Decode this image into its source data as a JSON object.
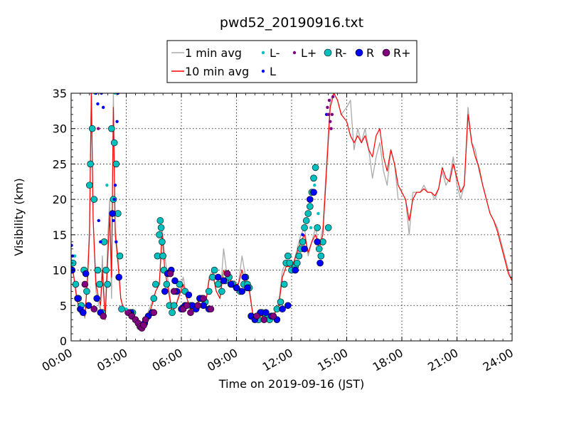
{
  "chart_data": {
    "type": "line",
    "title": "pwd52_20190916.txt",
    "xlabel": "Time on 2019-09-16 (JST)",
    "ylabel": "Visibility (km)",
    "x_unit": "hours (JST)",
    "xlim": [
      0,
      24
    ],
    "ylim": [
      0,
      35
    ],
    "x_ticks": [
      0,
      3,
      6,
      9,
      12,
      15,
      18,
      21,
      24
    ],
    "x_tick_labels": [
      "00:00",
      "03:00",
      "06:00",
      "09:00",
      "12:00",
      "15:00",
      "18:00",
      "21:00",
      "24:00"
    ],
    "y_ticks": [
      0,
      5,
      10,
      15,
      20,
      25,
      30,
      35
    ],
    "y_tick_labels": [
      "0",
      "5",
      "10",
      "15",
      "20",
      "25",
      "30",
      "35"
    ],
    "grid": true,
    "legend_position": "top-center",
    "legend": [
      {
        "label": "1 min avg",
        "kind": "line",
        "color": "#aaaaaa"
      },
      {
        "label": "10 min avg",
        "kind": "line",
        "color": "#ff0000"
      },
      {
        "label": "L-",
        "kind": "dot",
        "color": "#00bfbf"
      },
      {
        "label": "L",
        "kind": "dot",
        "color": "#0000ff"
      },
      {
        "label": "L+",
        "kind": "dot",
        "color": "#800080"
      },
      {
        "label": "R-",
        "kind": "circle",
        "color": "#00bfbf"
      },
      {
        "label": "R",
        "kind": "circle",
        "color": "#0000ff"
      },
      {
        "label": "R+",
        "kind": "circle",
        "color": "#800080"
      }
    ],
    "series": [
      {
        "name": "1 min avg",
        "color": "#aaaaaa",
        "x": [
          0.0,
          0.15,
          0.3,
          0.45,
          0.6,
          0.75,
          0.9,
          1.0,
          1.1,
          1.2,
          1.35,
          1.5,
          1.6,
          1.7,
          1.85,
          2.0,
          2.1,
          2.2,
          2.3,
          2.4,
          2.55,
          2.7,
          2.85,
          3.0,
          3.2,
          3.5,
          3.8,
          4.1,
          4.4,
          4.6,
          4.8,
          4.95,
          5.1,
          5.3,
          5.5,
          5.7,
          5.9,
          6.1,
          6.3,
          6.5,
          6.7,
          6.9,
          7.1,
          7.3,
          7.5,
          7.7,
          7.9,
          8.1,
          8.3,
          8.5,
          8.7,
          8.9,
          9.1,
          9.3,
          9.5,
          9.7,
          9.9,
          10.1,
          10.3,
          10.5,
          10.7,
          10.9,
          11.1,
          11.3,
          11.5,
          11.7,
          11.9,
          12.1,
          12.3,
          12.5,
          12.7,
          12.9,
          13.1,
          13.3,
          13.5,
          13.7,
          13.9,
          14.1,
          14.3,
          14.5,
          14.7,
          15.0,
          15.2,
          15.4,
          15.6,
          15.8,
          16.0,
          16.2,
          16.4,
          16.6,
          16.8,
          17.0,
          17.2,
          17.4,
          17.6,
          17.8,
          18.0,
          18.2,
          18.4,
          18.6,
          18.8,
          19.0,
          19.2,
          19.4,
          19.6,
          19.8,
          20.0,
          20.2,
          20.4,
          20.6,
          20.8,
          21.0,
          21.2,
          21.4,
          21.6,
          21.8,
          22.0,
          22.2,
          22.4,
          22.6,
          22.8,
          23.0,
          23.2,
          23.4,
          23.6,
          23.8,
          24.0
        ],
        "y": [
          12.0,
          9.0,
          6.5,
          4.0,
          4.5,
          3.2,
          10.0,
          16.0,
          35.0,
          17.0,
          7.0,
          5.0,
          4.5,
          12.0,
          3.0,
          15.0,
          20.0,
          6.0,
          35.0,
          16.0,
          12.0,
          6.0,
          4.5,
          4.2,
          4.0,
          3.0,
          1.8,
          3.5,
          5.5,
          7.0,
          8.0,
          16.0,
          12.0,
          8.0,
          4.0,
          5.0,
          7.0,
          9.0,
          6.0,
          4.5,
          4.5,
          5.5,
          6.0,
          4.5,
          9.0,
          10.0,
          7.0,
          6.0,
          13.0,
          9.0,
          8.5,
          8.5,
          8.0,
          12.0,
          9.0,
          7.5,
          3.5,
          3.0,
          4.0,
          3.5,
          3.2,
          3.5,
          4.0,
          5.5,
          10.0,
          11.0,
          10.5,
          11.0,
          13.0,
          15.0,
          16.0,
          12.0,
          14.0,
          16.0,
          13.0,
          16.0,
          25.0,
          34.0,
          35.0,
          34.0,
          32.0,
          33.0,
          34.0,
          27.0,
          30.0,
          28.0,
          30.0,
          27.0,
          23.0,
          26.0,
          28.0,
          24.0,
          22.0,
          27.0,
          25.0,
          20.0,
          20.0,
          20.0,
          15.0,
          21.0,
          21.0,
          21.0,
          22.0,
          21.0,
          21.0,
          20.0,
          21.5,
          24.0,
          22.0,
          23.0,
          26.0,
          22.0,
          20.0,
          22.0,
          33.0,
          28.0,
          27.0,
          24.0,
          22.0,
          20.0,
          18.0,
          17.0,
          16.0,
          14.0,
          12.0,
          10.0,
          8.5
        ],
        "notes": "high-frequency noisy series approximated"
      },
      {
        "name": "10 min avg",
        "color": "#ff0000",
        "x": [
          0.0,
          0.15,
          0.3,
          0.45,
          0.6,
          0.75,
          0.9,
          1.0,
          1.1,
          1.2,
          1.35,
          1.5,
          1.6,
          1.7,
          1.85,
          2.0,
          2.1,
          2.2,
          2.3,
          2.4,
          2.55,
          2.7,
          2.85,
          3.0,
          3.2,
          3.5,
          3.8,
          4.1,
          4.4,
          4.6,
          4.8,
          4.95,
          5.1,
          5.3,
          5.5,
          5.7,
          5.9,
          6.1,
          6.3,
          6.5,
          6.7,
          6.9,
          7.1,
          7.3,
          7.5,
          7.7,
          7.9,
          8.1,
          8.3,
          8.5,
          8.7,
          8.9,
          9.1,
          9.3,
          9.5,
          9.7,
          9.9,
          10.1,
          10.3,
          10.5,
          10.7,
          10.9,
          11.1,
          11.3,
          11.5,
          11.7,
          11.9,
          12.1,
          12.3,
          12.5,
          12.7,
          12.9,
          13.1,
          13.3,
          13.5,
          13.7,
          13.9,
          14.1,
          14.3,
          14.5,
          14.7,
          15.0,
          15.2,
          15.4,
          15.6,
          15.8,
          16.0,
          16.2,
          16.4,
          16.6,
          16.8,
          17.0,
          17.2,
          17.4,
          17.6,
          17.8,
          18.0,
          18.2,
          18.4,
          18.6,
          18.8,
          19.0,
          19.2,
          19.4,
          19.6,
          19.8,
          20.0,
          20.2,
          20.4,
          20.6,
          20.8,
          21.0,
          21.2,
          21.4,
          21.6,
          21.8,
          22.0,
          22.2,
          22.4,
          22.6,
          22.8,
          23.0,
          23.2,
          23.4,
          23.6,
          23.8,
          24.0
        ],
        "y": [
          11.0,
          9.0,
          6.0,
          4.5,
          4.5,
          3.5,
          9.0,
          15.0,
          35.0,
          17.0,
          8.0,
          6.0,
          5.0,
          10.0,
          3.0,
          12.0,
          18.0,
          9.0,
          33.0,
          15.0,
          11.0,
          6.0,
          4.5,
          4.2,
          4.0,
          3.0,
          2.0,
          3.0,
          5.0,
          7.0,
          8.0,
          15.0,
          10.0,
          7.0,
          4.0,
          5.0,
          6.5,
          8.0,
          6.0,
          4.5,
          4.5,
          5.5,
          6.0,
          5.0,
          8.5,
          9.5,
          7.0,
          6.0,
          10.0,
          9.0,
          8.5,
          8.0,
          8.0,
          10.0,
          8.0,
          7.0,
          3.5,
          3.0,
          3.5,
          3.5,
          3.2,
          3.5,
          4.0,
          5.0,
          9.0,
          10.5,
          10.5,
          11.0,
          12.5,
          14.0,
          15.0,
          12.5,
          14.0,
          15.0,
          13.0,
          15.0,
          24.0,
          33.0,
          35.0,
          34.0,
          32.0,
          31.0,
          29.0,
          28.0,
          29.0,
          28.0,
          29.0,
          27.0,
          26.0,
          29.0,
          30.0,
          26.0,
          24.0,
          27.0,
          25.0,
          22.0,
          21.0,
          20.0,
          17.0,
          20.0,
          21.0,
          21.0,
          21.5,
          21.0,
          21.0,
          20.5,
          21.5,
          24.5,
          23.0,
          22.5,
          25.0,
          23.0,
          21.0,
          22.0,
          32.0,
          28.0,
          26.0,
          24.5,
          22.0,
          20.0,
          18.0,
          17.0,
          15.5,
          13.5,
          11.5,
          9.5,
          8.5
        ]
      },
      {
        "name": "R-",
        "color": "#00bfbf",
        "marker": "circle",
        "x": [
          0.1,
          0.25,
          0.4,
          0.55,
          0.7,
          0.85,
          1.0,
          1.05,
          1.15,
          1.25,
          1.45,
          1.55,
          1.7,
          1.8,
          1.9,
          1.98,
          2.2,
          2.3,
          2.35,
          2.45,
          2.55,
          2.65,
          2.75,
          3.35,
          4.5,
          4.6,
          4.7,
          4.8,
          4.85,
          4.9,
          4.95,
          5.0,
          5.05,
          5.2,
          5.35,
          5.5,
          5.6,
          5.9,
          6.2,
          6.5,
          7.1,
          7.3,
          7.5,
          7.7,
          7.8,
          8.0,
          8.2,
          8.4,
          8.6,
          8.8,
          9.0,
          9.2,
          9.4,
          9.5,
          9.6,
          9.7,
          9.8,
          10.2,
          10.4,
          10.6,
          10.8,
          11.0,
          11.2,
          11.4,
          11.6,
          11.7,
          11.8,
          11.9,
          12.0,
          12.2,
          12.3,
          12.4,
          12.5,
          12.6,
          12.7,
          12.8,
          12.9,
          13.0,
          13.1,
          13.2,
          13.3,
          13.4,
          13.5,
          13.6,
          13.7,
          14.0
        ],
        "y": [
          11.0,
          8.0,
          6.0,
          5.0,
          10.0,
          7.0,
          22.0,
          25.0,
          30.0,
          20.0,
          10.0,
          8.0,
          4.0,
          14.0,
          10.0,
          8.0,
          30.0,
          20.0,
          28.0,
          25.0,
          18.0,
          12.0,
          4.5,
          4.0,
          6.0,
          8.0,
          12.0,
          15.0,
          17.0,
          16.0,
          14.0,
          12.0,
          10.0,
          8.0,
          5.0,
          4.0,
          5.0,
          8.0,
          7.0,
          5.0,
          6.0,
          5.5,
          7.0,
          9.0,
          10.0,
          8.0,
          7.0,
          8.5,
          9.0,
          8.0,
          7.5,
          7.0,
          8.0,
          9.0,
          8.0,
          7.5,
          3.5,
          3.0,
          4.0,
          3.5,
          3.0,
          3.5,
          4.5,
          5.5,
          8.0,
          11.0,
          12.0,
          11.0,
          10.0,
          10.5,
          11.0,
          12.0,
          13.0,
          14.0,
          16.0,
          17.0,
          18.0,
          19.0,
          21.0,
          23.0,
          24.5,
          16.0,
          13.0,
          12.0,
          14.0,
          16.0
        ]
      },
      {
        "name": "R",
        "color": "#0000ff",
        "marker": "circle",
        "x": [
          0.05,
          0.35,
          0.5,
          0.65,
          0.8,
          0.95,
          1.4,
          1.6,
          2.25,
          2.6,
          3.25,
          4.0,
          4.2,
          4.4,
          5.1,
          5.25,
          5.45,
          5.65,
          5.75,
          6.0,
          6.2,
          6.4,
          6.6,
          6.8,
          7.0,
          7.2,
          7.5,
          8.0,
          8.3,
          8.7,
          9.0,
          9.3,
          9.45,
          9.6,
          9.8,
          10.0,
          10.3,
          10.6,
          10.9,
          11.2,
          11.5,
          11.8,
          12.2,
          12.7,
          13.0,
          13.2,
          13.4,
          13.55
        ],
        "y": [
          10.0,
          6.0,
          4.5,
          4.0,
          9.5,
          5.0,
          6.0,
          4.0,
          18.0,
          9.0,
          4.0,
          2.5,
          3.5,
          4.0,
          7.0,
          9.5,
          10.0,
          8.5,
          7.0,
          4.5,
          5.0,
          6.5,
          5.0,
          4.5,
          6.0,
          5.0,
          4.5,
          9.0,
          8.5,
          8.0,
          7.5,
          7.0,
          9.0,
          7.5,
          3.5,
          3.0,
          4.0,
          4.0,
          3.5,
          3.0,
          4.5,
          5.0,
          10.0,
          13.0,
          20.0,
          21.0,
          14.0,
          11.0
        ]
      },
      {
        "name": "R+",
        "color": "#800080",
        "marker": "circle",
        "x": [
          0.75,
          1.25,
          1.75,
          3.1,
          3.3,
          3.5,
          3.65,
          3.75,
          3.85,
          3.95,
          4.05,
          4.5,
          5.4,
          5.6,
          6.1,
          6.3,
          6.5,
          6.9,
          7.2,
          7.6,
          8.5,
          10.1,
          10.5,
          11.0
        ],
        "y": [
          8.0,
          4.5,
          3.5,
          4.0,
          3.5,
          3.0,
          2.5,
          2.0,
          1.8,
          2.2,
          3.0,
          4.0,
          9.5,
          7.0,
          4.5,
          5.0,
          4.0,
          5.0,
          6.0,
          4.5,
          9.5,
          3.5,
          3.0,
          3.5
        ]
      },
      {
        "name": "L-",
        "color": "#00bfbf",
        "marker": "dot",
        "x": [
          0.2,
          0.6,
          1.3,
          1.95,
          2.4,
          3.0,
          13.05,
          13.25,
          13.45
        ],
        "y": [
          12.0,
          5.0,
          35.0,
          22.0,
          35.0,
          4.5,
          16.0,
          22.0,
          18.0
        ]
      },
      {
        "name": "L",
        "color": "#0000ff",
        "marker": "dot",
        "x": [
          0.02,
          0.08,
          1.35,
          1.45,
          1.5,
          1.6,
          1.65,
          1.75,
          2.3,
          2.35,
          2.4,
          2.45,
          2.5,
          2.55,
          12.6,
          13.9
        ],
        "y": [
          13.5,
          12.0,
          35.0,
          33.5,
          17.0,
          14.0,
          35.0,
          33.0,
          17.0,
          20.0,
          22.0,
          14.0,
          31.0,
          35.0,
          15.0,
          32.0
        ]
      },
      {
        "name": "L+",
        "color": "#800080",
        "marker": "dot",
        "x": [
          1.48,
          13.95,
          14.0,
          14.05,
          14.1,
          14.15,
          14.2,
          14.25
        ],
        "y": [
          30.0,
          33.0,
          32.0,
          34.0,
          31.0,
          30.0,
          32.0,
          34.5
        ]
      }
    ]
  }
}
